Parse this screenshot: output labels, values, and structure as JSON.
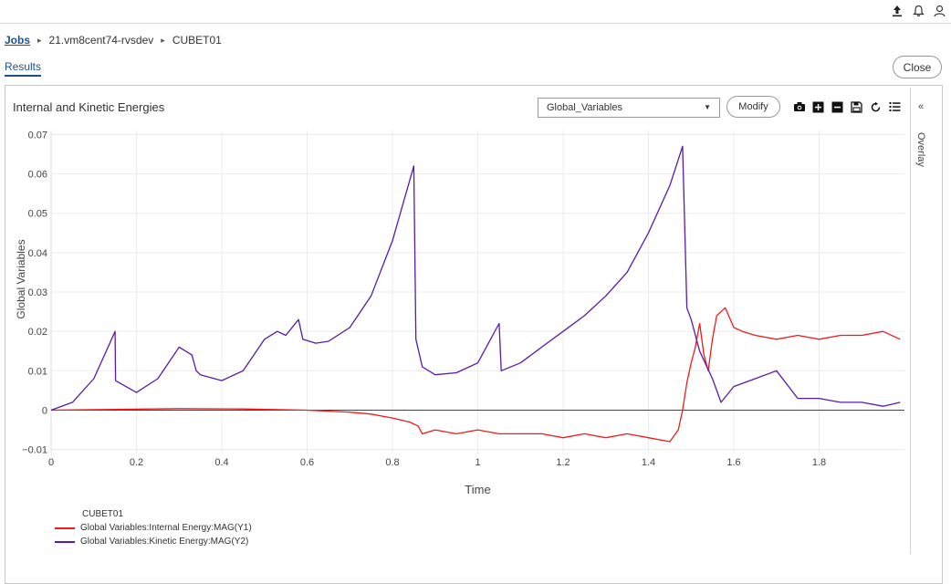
{
  "header": {
    "icons": [
      "upload-icon",
      "bell-icon",
      "user-icon"
    ]
  },
  "breadcrumb": {
    "jobs": "Jobs",
    "server": "21.vm8cent74-rvsdev",
    "job": "CUBET01"
  },
  "tabs": {
    "results": "Results"
  },
  "buttons": {
    "close": "Close",
    "modify": "Modify"
  },
  "dropdown": {
    "selected": "Global_Variables"
  },
  "overlay": {
    "label": "Overlay",
    "toggle": "«"
  },
  "toolbar_icons": [
    "camera-icon",
    "zoom-in-icon",
    "zoom-out-icon",
    "save-icon",
    "reset-icon",
    "list-icon"
  ],
  "colors": {
    "series1": "#ee1c1c",
    "series2": "#5a1aa8",
    "accent": "#1f4e8a"
  },
  "chart_data": {
    "type": "line",
    "title": "Internal and Kinetic Energies",
    "xlabel": "Time",
    "ylabel": "Global Variables",
    "xlim": [
      0,
      2.0
    ],
    "ylim": [
      -0.011,
      0.071
    ],
    "xticks": [
      0,
      0.2,
      0.4,
      0.6,
      0.8,
      1,
      1.2,
      1.4,
      1.6,
      1.8
    ],
    "xtick_labels": [
      "0",
      "0.2",
      "0.4",
      "0.6",
      "0.8",
      "1",
      "1.2",
      "1.4",
      "1.6",
      "1.8"
    ],
    "yticks": [
      -0.01,
      0,
      0.01,
      0.02,
      0.03,
      0.04,
      0.05,
      0.06,
      0.07
    ],
    "ytick_labels": [
      "−0.01",
      "0",
      "0.01",
      "0.02",
      "0.03",
      "0.04",
      "0.05",
      "0.06",
      "0.07"
    ],
    "grid": true,
    "legend_position": "bottom-left",
    "legend_title": "CUBET01",
    "series": [
      {
        "name": "Global Variables:Internal Energy:MAG(Y1)",
        "x": [
          0,
          0.15,
          0.3,
          0.45,
          0.6,
          0.7,
          0.75,
          0.8,
          0.84,
          0.86,
          0.87,
          0.9,
          0.95,
          1.0,
          1.05,
          1.1,
          1.15,
          1.2,
          1.25,
          1.3,
          1.35,
          1.4,
          1.45,
          1.47,
          1.48,
          1.49,
          1.5,
          1.51,
          1.52,
          1.53,
          1.54,
          1.55,
          1.56,
          1.58,
          1.6,
          1.62,
          1.65,
          1.7,
          1.75,
          1.8,
          1.85,
          1.9,
          1.95,
          1.99
        ],
        "y": [
          0,
          0.0002,
          0.0004,
          0.0003,
          0,
          -0.0005,
          -0.001,
          -0.002,
          -0.003,
          -0.004,
          -0.006,
          -0.005,
          -0.006,
          -0.005,
          -0.006,
          -0.006,
          -0.006,
          -0.007,
          -0.006,
          -0.007,
          -0.006,
          -0.007,
          -0.008,
          -0.005,
          0,
          0.007,
          0.012,
          0.016,
          0.022,
          0.014,
          0.01,
          0.018,
          0.024,
          0.026,
          0.021,
          0.02,
          0.019,
          0.018,
          0.019,
          0.018,
          0.019,
          0.019,
          0.02,
          0.018
        ]
      },
      {
        "name": "Global Variables:Kinetic Energy:MAG(Y2)",
        "x": [
          0,
          0.05,
          0.1,
          0.15,
          0.151,
          0.2,
          0.25,
          0.3,
          0.33,
          0.34,
          0.35,
          0.4,
          0.45,
          0.5,
          0.53,
          0.55,
          0.58,
          0.59,
          0.62,
          0.65,
          0.7,
          0.75,
          0.8,
          0.85,
          0.855,
          0.87,
          0.9,
          0.95,
          1.0,
          1.03,
          1.05,
          1.055,
          1.1,
          1.15,
          1.2,
          1.25,
          1.3,
          1.35,
          1.4,
          1.45,
          1.48,
          1.49,
          1.5,
          1.52,
          1.55,
          1.57,
          1.6,
          1.65,
          1.7,
          1.75,
          1.8,
          1.85,
          1.9,
          1.95,
          1.99
        ],
        "y": [
          0,
          0.002,
          0.008,
          0.02,
          0.0075,
          0.0045,
          0.008,
          0.016,
          0.014,
          0.01,
          0.009,
          0.0075,
          0.01,
          0.018,
          0.02,
          0.019,
          0.023,
          0.018,
          0.017,
          0.0175,
          0.021,
          0.029,
          0.043,
          0.062,
          0.018,
          0.011,
          0.009,
          0.0095,
          0.012,
          0.018,
          0.022,
          0.01,
          0.012,
          0.016,
          0.02,
          0.024,
          0.029,
          0.035,
          0.045,
          0.057,
          0.067,
          0.026,
          0.023,
          0.015,
          0.008,
          0.002,
          0.006,
          0.008,
          0.01,
          0.003,
          0.003,
          0.002,
          0.002,
          0.001,
          0.002
        ]
      }
    ]
  }
}
